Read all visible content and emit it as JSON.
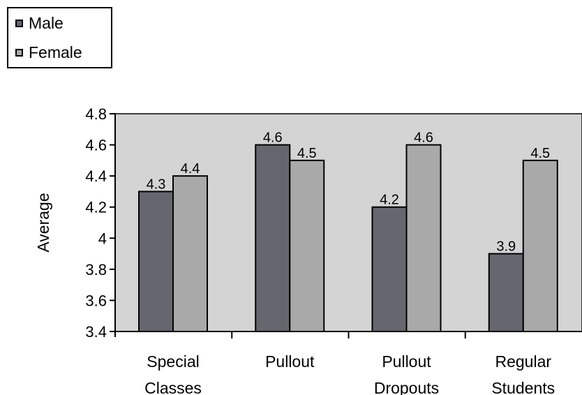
{
  "chart_data": {
    "type": "bar",
    "categories": [
      [
        "Special",
        "Classes"
      ],
      [
        "Pullout"
      ],
      [
        "Pullout",
        "Dropouts"
      ],
      [
        "Regular",
        "Students"
      ]
    ],
    "series": [
      {
        "name": "Male",
        "values": [
          4.3,
          4.6,
          4.2,
          3.9
        ],
        "color": "#66666e"
      },
      {
        "name": "Female",
        "values": [
          4.4,
          4.5,
          4.6,
          4.5
        ],
        "color": "#a9a9a9"
      }
    ],
    "data_labels": [
      [
        "4.3",
        "4.6",
        "4.2",
        "3.9"
      ],
      [
        "4.4",
        "4.5",
        "4.6",
        "4.5"
      ]
    ],
    "ylabel": "Average",
    "ylim": [
      3.4,
      4.8
    ],
    "yticks": [
      "3.4",
      "3.6",
      "3.8",
      "4",
      "4.2",
      "4.4",
      "4.6",
      "4.8"
    ],
    "plot_background": "#d4d4d4",
    "grid": false,
    "legend_position": "top-left"
  }
}
